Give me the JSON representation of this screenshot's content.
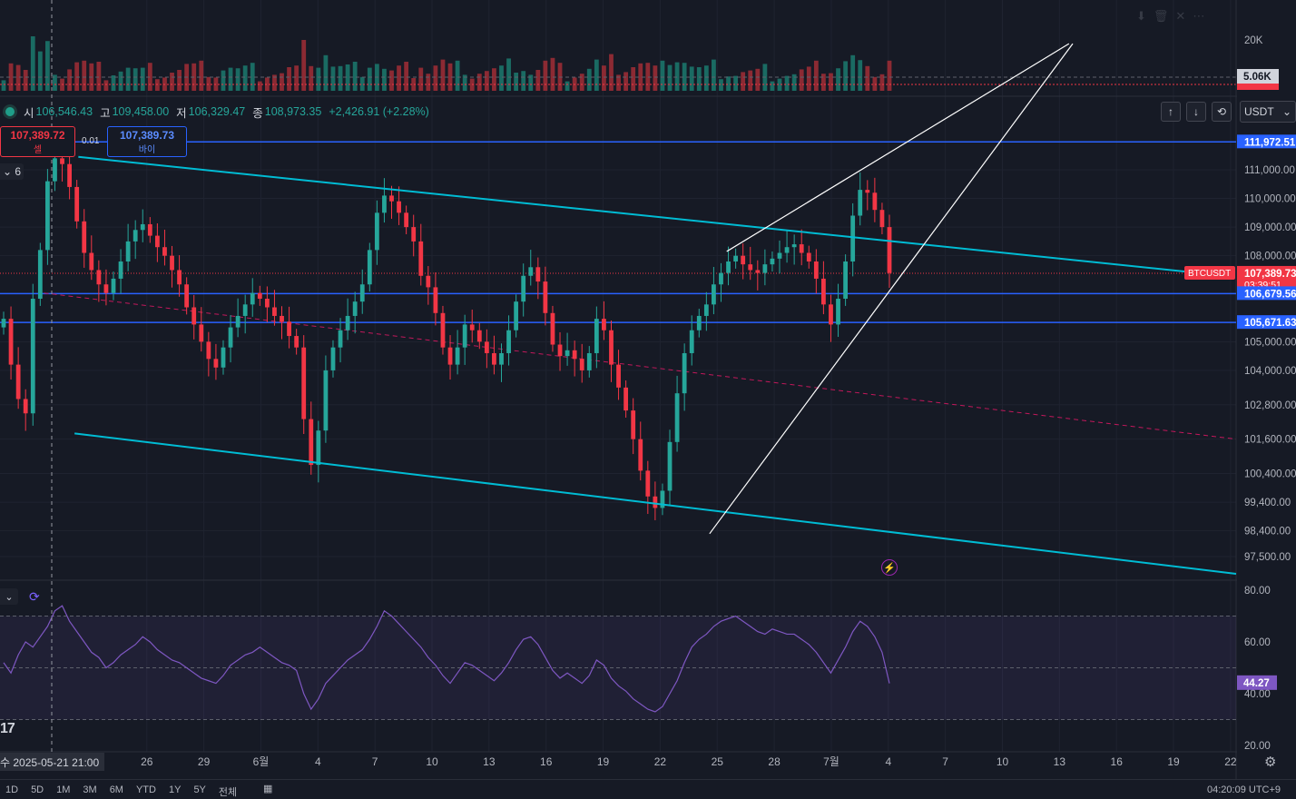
{
  "chart_data": [
    {
      "type": "candlestick",
      "symbol": "BTCUSDT",
      "ohlc_header": {
        "open_label": "시",
        "open": "106,546.43",
        "high_label": "고",
        "high": "109,458.00",
        "low_label": "저",
        "low": "106,329.47",
        "close_label": "종",
        "close": "108,973.35",
        "change": "+2,426.91 (+2.28%)"
      },
      "price_axis_labels": [
        "111,000.00",
        "110,000.00",
        "109,000.00",
        "108,000.00",
        "105,000.00",
        "104,000.00",
        "102,800.00",
        "101,600.00",
        "100,400.00",
        "99,400.00",
        "98,400.00",
        "97,500.00"
      ],
      "price_axis_values": [
        111000,
        110000,
        109000,
        108000,
        105000,
        104000,
        102800,
        101600,
        100400,
        99400,
        98400,
        97500
      ],
      "date_axis_labels": [
        "26",
        "29",
        "6월",
        "4",
        "7",
        "10",
        "13",
        "16",
        "19",
        "22",
        "25",
        "28",
        "7월",
        "4",
        "7",
        "10",
        "13",
        "16",
        "19",
        "22"
      ],
      "date_axis_days_from_may21": [
        5,
        8,
        11,
        14,
        17,
        20,
        23,
        26,
        29,
        32,
        35,
        38,
        41,
        44,
        47,
        50,
        53,
        56,
        59,
        62
      ],
      "price_tags": [
        {
          "label": "111,972.51",
          "value": 111972.51,
          "color": "#2962ff"
        },
        {
          "label": "107,389.73",
          "value": 107389.73,
          "sub": "03:39:51",
          "color": "#f23645"
        },
        {
          "label": "106,679.56",
          "value": 106679.56,
          "color": "#2962ff"
        },
        {
          "label": "105,671.63",
          "value": 105671.63,
          "color": "#2962ff"
        }
      ],
      "symbol_tag": "BTCUSDT",
      "horizontal_lines": [
        111972.51,
        106679.56,
        105671.63
      ],
      "current_price": 107389.73,
      "crosshair_date": "수 2025-05-21   21:00",
      "sell": {
        "price": "107,389.72",
        "label": "셀"
      },
      "buy": {
        "price": "107,389.73",
        "label": "바이"
      },
      "spread": "0.01",
      "collapse_count": "6",
      "candle_closes": [
        105800,
        104200,
        103000,
        102500,
        106500,
        108200,
        110600,
        111400,
        111200,
        110400,
        109200,
        108100,
        107500,
        107000,
        106700,
        107200,
        107800,
        108500,
        108900,
        109100,
        108700,
        108300,
        108000,
        107500,
        107000,
        106200,
        105600,
        105000,
        104400,
        104100,
        104800,
        105500,
        105900,
        106300,
        106700,
        106500,
        106200,
        105900,
        105700,
        105200,
        104800,
        102300,
        100700,
        101900,
        104000,
        104800,
        105400,
        105900,
        106400,
        107000,
        108200,
        109500,
        110100,
        109900,
        109500,
        109000,
        108500,
        107300,
        106900,
        106000,
        104800,
        104200,
        104800,
        105600,
        105400,
        105000,
        104600,
        104200,
        104600,
        105400,
        106400,
        107300,
        107600,
        107100,
        106000,
        104900,
        104500,
        104700,
        104400,
        104000,
        104600,
        105800,
        105400,
        104200,
        103400,
        102600,
        101600,
        100500,
        99600,
        99200,
        99800,
        101500,
        103200,
        104600,
        105400,
        105900,
        106300,
        107000,
        107400,
        107800,
        108000,
        107700,
        107500,
        107400,
        107700,
        107900,
        108100,
        108300,
        108400,
        108100,
        107800,
        107200,
        106300,
        105600,
        106500,
        107800,
        109400,
        110300,
        110200,
        109600,
        109000,
        107400
      ],
      "volume_axis_labels": [
        "20K",
        "5.06K"
      ]
    },
    {
      "type": "line",
      "indicator": "RSI",
      "y_axis_labels": [
        "80.00",
        "60.00",
        "40.00",
        "20.00"
      ],
      "y_axis_values": [
        80,
        60,
        40,
        20
      ],
      "bands": [
        70,
        50,
        30
      ],
      "current_value": "44.27",
      "values": [
        52,
        48,
        55,
        60,
        58,
        62,
        66,
        72,
        74,
        68,
        64,
        60,
        56,
        54,
        50,
        52,
        55,
        57,
        59,
        62,
        60,
        57,
        55,
        53,
        52,
        50,
        48,
        46,
        45,
        44,
        47,
        51,
        53,
        55,
        56,
        58,
        56,
        54,
        52,
        51,
        49,
        40,
        34,
        38,
        44,
        47,
        50,
        53,
        55,
        57,
        61,
        66,
        72,
        70,
        67,
        64,
        61,
        58,
        54,
        51,
        47,
        44,
        48,
        52,
        51,
        49,
        47,
        45,
        48,
        52,
        57,
        61,
        62,
        59,
        54,
        49,
        46,
        48,
        46,
        44,
        47,
        53,
        51,
        46,
        43,
        41,
        38,
        36,
        34,
        33,
        35,
        40,
        45,
        52,
        58,
        61,
        63,
        66,
        68,
        69,
        70,
        68,
        66,
        64,
        63,
        65,
        64,
        63,
        63,
        61,
        59,
        56,
        52,
        48,
        53,
        58,
        64,
        68,
        66,
        62,
        56,
        44
      ]
    }
  ],
  "toolbar": {
    "currency": "USDT",
    "up_arrow": "↑",
    "down_arrow": "↓",
    "reset_icon": "⟲"
  },
  "bottom": {
    "intervals": [
      "1D",
      "5D",
      "1M",
      "3M",
      "6M",
      "YTD",
      "1Y",
      "5Y",
      "전체"
    ],
    "clock": "04:20:09 UTC+9"
  },
  "colors": {
    "up": "#26a69a",
    "down": "#f23645",
    "channel": "#00bcd4",
    "level": "#2962ff",
    "rsi": "#7e57c2",
    "background": "#161a25"
  }
}
